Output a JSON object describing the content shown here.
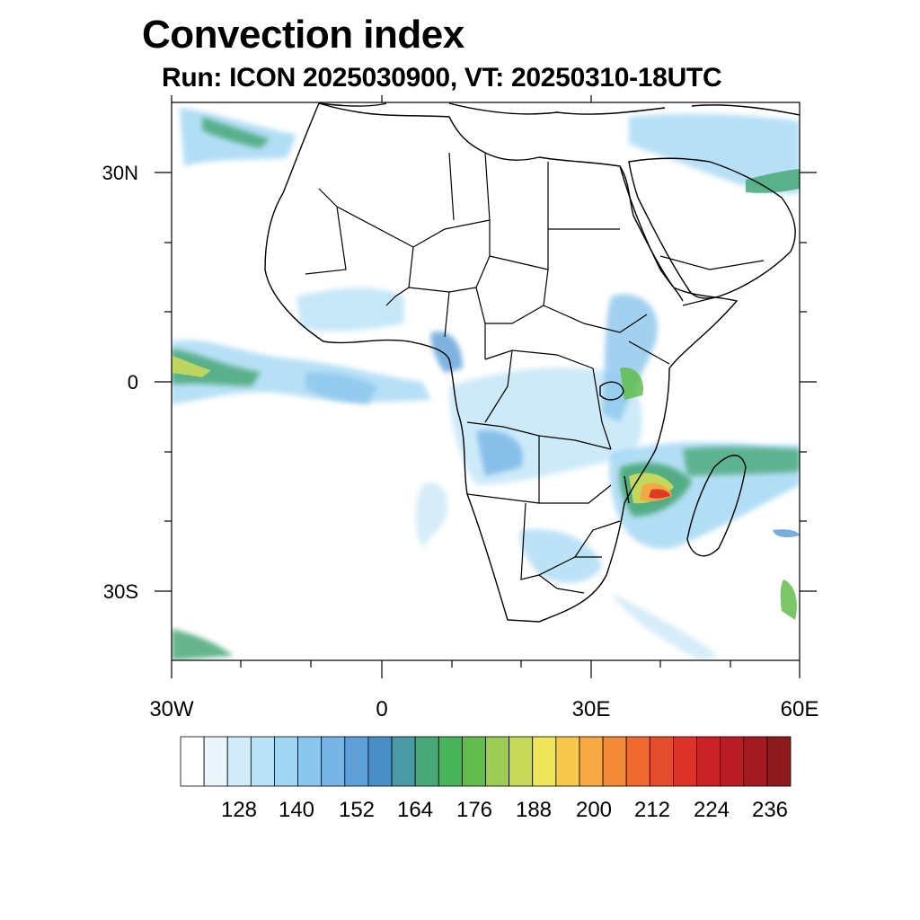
{
  "title": "Convection index",
  "subtitle": "Run: ICON 2025030900,  VT: 20250310-18UTC",
  "lat_labels": [
    "30N",
    "0",
    "30S"
  ],
  "lon_labels": [
    "30W",
    "0",
    "30E",
    "60E"
  ],
  "colorbar": {
    "labels": [
      "128",
      "140",
      "152",
      "164",
      "176",
      "188",
      "200",
      "212",
      "224",
      "236"
    ],
    "colors": [
      "#ffffff",
      "#eaf5fc",
      "#d2ebf8",
      "#b9e2f6",
      "#9fd6f3",
      "#8ac6ec",
      "#76b5e6",
      "#5fa0d8",
      "#4a8ec6",
      "#4a9aa6",
      "#48a878",
      "#47b45a",
      "#62bd4c",
      "#9ccc54",
      "#c8d95a",
      "#eee65a",
      "#f7c84c",
      "#f7a842",
      "#f38a38",
      "#ee6a2e",
      "#e54e2a",
      "#dc3228",
      "#c92226",
      "#b81c24",
      "#a41a22",
      "#8e1a1e"
    ]
  },
  "map": {
    "lon_range": [
      -30,
      60
    ],
    "lat_range": [
      -40,
      40
    ]
  }
}
